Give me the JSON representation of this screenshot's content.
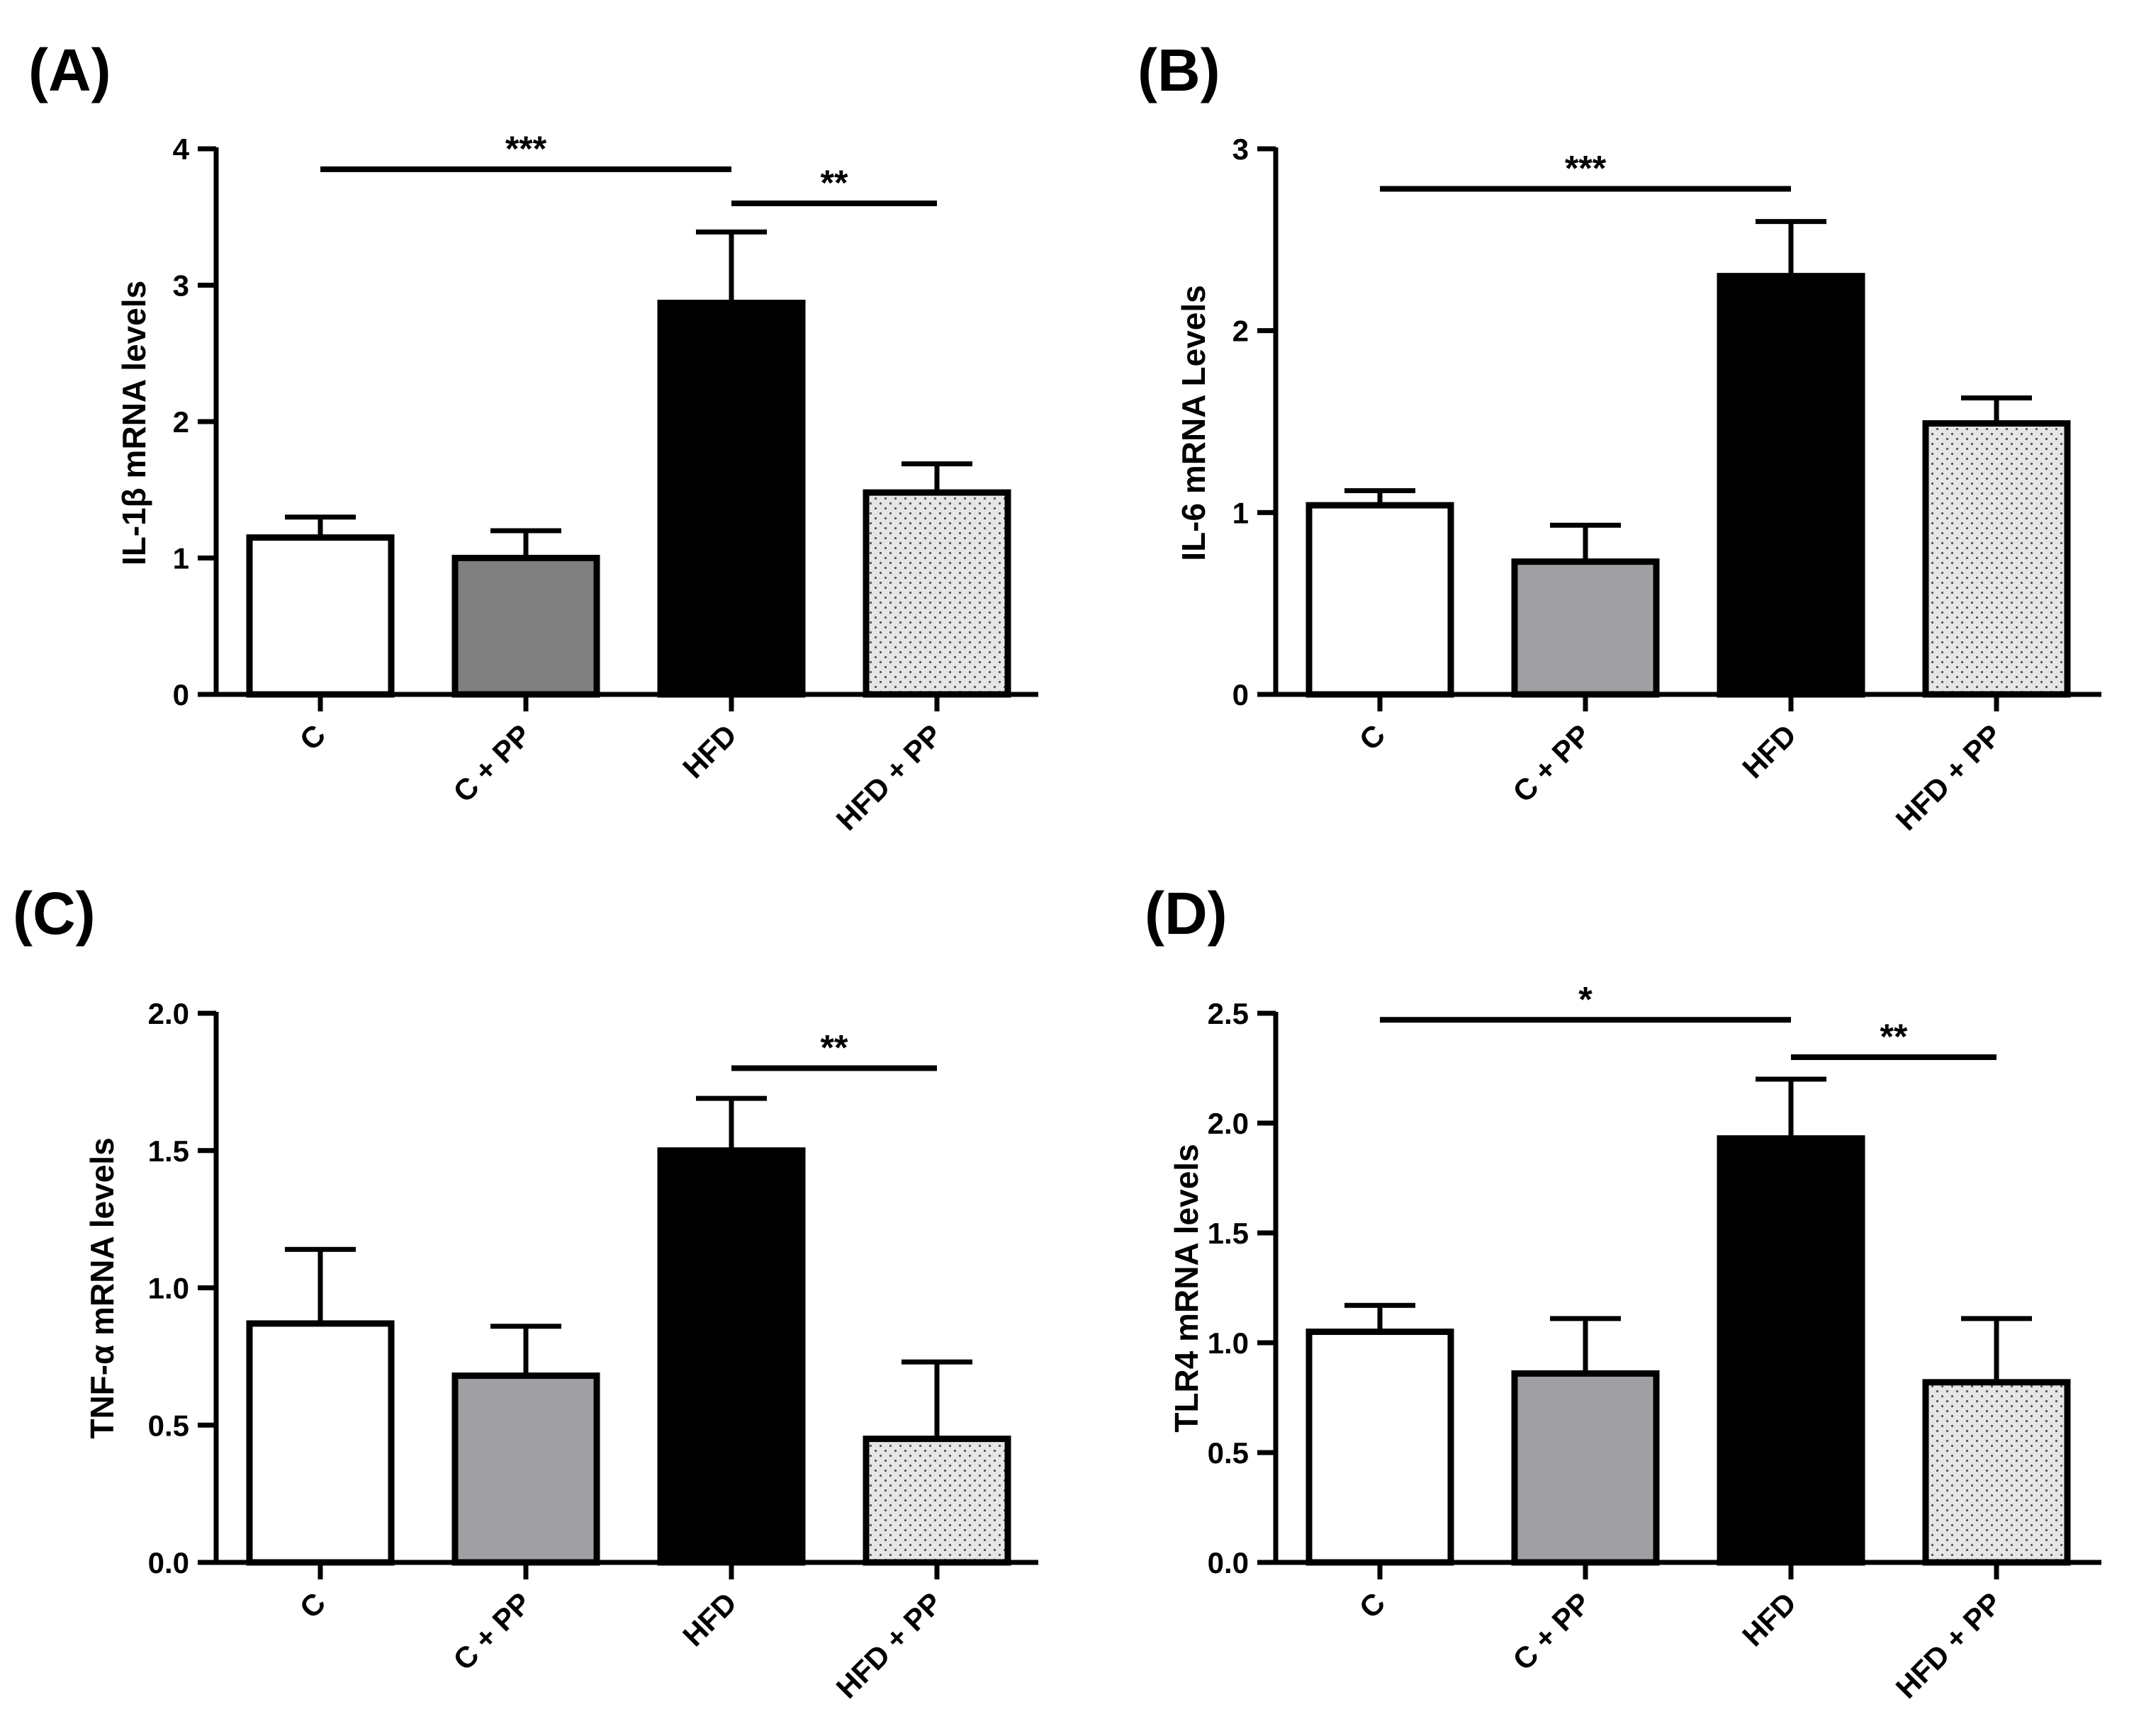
{
  "figure": {
    "panel_labels": [
      "(A)",
      "(B)",
      "(C)",
      "(D)"
    ]
  },
  "colors": {
    "C": "#ffffff",
    "C + PP": "#a0a0a4",
    "C + PP (A)": "#808080",
    "HFD": "#000000",
    "HFD + PP": "#e6e6e6",
    "dots": "#555555",
    "stroke": "#000000"
  },
  "chart_data": [
    {
      "panel": "(A)",
      "type": "bar",
      "categories": [
        "C",
        "C + PP",
        "HFD",
        "HFD + PP"
      ],
      "values": [
        1.15,
        1.0,
        2.87,
        1.48
      ],
      "errors": [
        0.15,
        0.2,
        0.52,
        0.21
      ],
      "ylabel": "IL-1β mRNA levels",
      "xlabel": "",
      "ylim": [
        0,
        4
      ],
      "yticks": [
        0,
        1,
        2,
        3,
        4
      ],
      "ytick_labels": [
        "0",
        "1",
        "2",
        "3",
        "4"
      ],
      "fills": [
        "#ffffff",
        "#808080",
        "#000000",
        "dotted"
      ],
      "significance": [
        {
          "from": "C",
          "to": "HFD",
          "label": "***",
          "level": 3.85
        },
        {
          "from": "HFD",
          "to": "HFD + PP",
          "label": "**",
          "level": 3.6
        }
      ]
    },
    {
      "panel": "(B)",
      "type": "bar",
      "categories": [
        "C",
        "C + PP",
        "HFD",
        "HFD + PP"
      ],
      "values": [
        1.04,
        0.73,
        2.3,
        1.49
      ],
      "errors": [
        0.08,
        0.2,
        0.3,
        0.14
      ],
      "ylabel": "IL-6 mRNA Levels",
      "xlabel": "",
      "ylim": [
        0,
        3
      ],
      "yticks": [
        0,
        1,
        2,
        3
      ],
      "ytick_labels": [
        "0",
        "1",
        "2",
        "3"
      ],
      "fills": [
        "#ffffff",
        "#a0a0a4",
        "#000000",
        "dotted"
      ],
      "significance": [
        {
          "from": "C",
          "to": "HFD",
          "label": "***",
          "level": 2.78
        }
      ]
    },
    {
      "panel": "(C)",
      "type": "bar",
      "categories": [
        "C",
        "C + PP",
        "HFD",
        "HFD + PP"
      ],
      "values": [
        0.87,
        0.68,
        1.5,
        0.45
      ],
      "errors": [
        0.27,
        0.18,
        0.19,
        0.28
      ],
      "ylabel": "TNF-α mRNA levels",
      "xlabel": "",
      "ylim": [
        0,
        2.0
      ],
      "yticks": [
        0,
        0.5,
        1.0,
        1.5,
        2.0
      ],
      "ytick_labels": [
        "0.0",
        "0.5",
        "1.0",
        "1.5",
        "2.0"
      ],
      "fills": [
        "#ffffff",
        "#a0a0a4",
        "#000000",
        "dotted"
      ],
      "significance": [
        {
          "from": "HFD",
          "to": "HFD + PP",
          "label": "**",
          "level": 1.8
        }
      ]
    },
    {
      "panel": "(D)",
      "type": "bar",
      "categories": [
        "C",
        "C + PP",
        "HFD",
        "HFD + PP"
      ],
      "values": [
        1.05,
        0.86,
        1.93,
        0.82
      ],
      "errors": [
        0.12,
        0.25,
        0.27,
        0.29
      ],
      "ylabel": "TLR4 mRNA levels",
      "xlabel": "",
      "ylim": [
        0,
        2.5
      ],
      "yticks": [
        0,
        0.5,
        1.0,
        1.5,
        2.0,
        2.5
      ],
      "ytick_labels": [
        "0.0",
        "0.5",
        "1.0",
        "1.5",
        "2.0",
        "2.5"
      ],
      "fills": [
        "#ffffff",
        "#a0a0a4",
        "#000000",
        "dotted"
      ],
      "significance": [
        {
          "from": "C",
          "to": "HFD",
          "label": "*",
          "level": 2.47
        },
        {
          "from": "HFD",
          "to": "HFD + PP",
          "label": "**",
          "level": 2.3
        }
      ]
    }
  ]
}
